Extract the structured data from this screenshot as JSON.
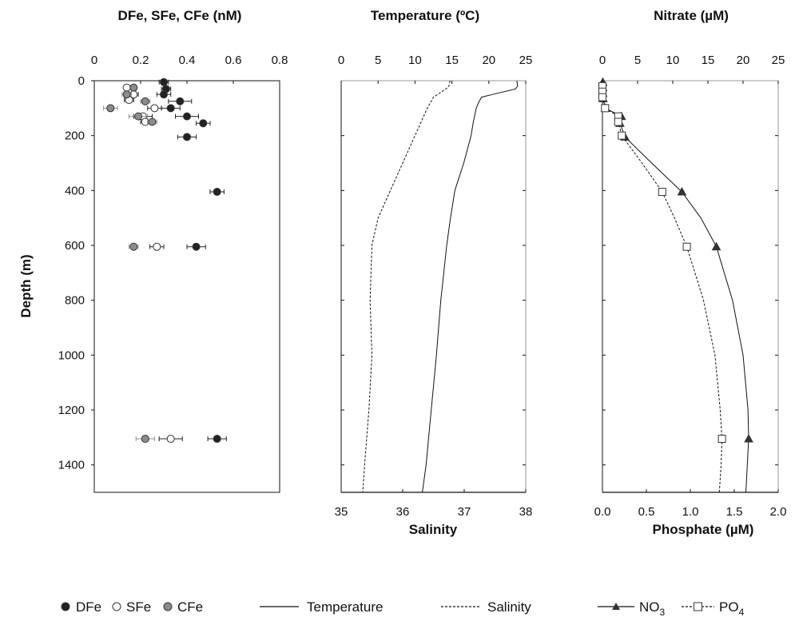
{
  "chart_data": [
    {
      "type": "scatter",
      "title": "DFe, SFe, CFe (nM)",
      "ylabel": "Depth (m)",
      "xlim": [
        0,
        0.8
      ],
      "x_ticks": [
        "0",
        "0.2",
        "0.4",
        "0.6",
        "0.8"
      ],
      "ylim": [
        0,
        1500
      ],
      "y_reversed": true,
      "y_ticks": [
        "0",
        "200",
        "400",
        "600",
        "800",
        "1000",
        "1200",
        "1400"
      ],
      "series": [
        {
          "name": "DFe",
          "marker": "filled-circle",
          "color": "#222222",
          "points": [
            {
              "x": 0.3,
              "y": 5,
              "err": 0.02
            },
            {
              "x": 0.31,
              "y": 30,
              "err": 0.02
            },
            {
              "x": 0.3,
              "y": 50,
              "err": 0.03
            },
            {
              "x": 0.37,
              "y": 75,
              "err": 0.05
            },
            {
              "x": 0.33,
              "y": 100,
              "err": 0.04
            },
            {
              "x": 0.4,
              "y": 130,
              "err": 0.05
            },
            {
              "x": 0.47,
              "y": 155,
              "err": 0.03
            },
            {
              "x": 0.4,
              "y": 205,
              "err": 0.04
            },
            {
              "x": 0.53,
              "y": 405,
              "err": 0.03
            },
            {
              "x": 0.44,
              "y": 605,
              "err": 0.04
            },
            {
              "x": 0.53,
              "y": 1305,
              "err": 0.04
            }
          ]
        },
        {
          "name": "SFe",
          "marker": "open-circle",
          "color": "#222222",
          "points": [
            {
              "x": 0.14,
              "y": 25,
              "err": 0.01
            },
            {
              "x": 0.17,
              "y": 50,
              "err": 0.02
            },
            {
              "x": 0.15,
              "y": 70,
              "err": 0.02
            },
            {
              "x": 0.26,
              "y": 100,
              "err": 0.03
            },
            {
              "x": 0.21,
              "y": 130,
              "err": 0.04
            },
            {
              "x": 0.22,
              "y": 150,
              "err": 0.02
            },
            {
              "x": 0.27,
              "y": 605,
              "err": 0.03
            },
            {
              "x": 0.33,
              "y": 1305,
              "err": 0.05
            }
          ]
        },
        {
          "name": "CFe",
          "marker": "gray-circle",
          "color": "#8c8c8c",
          "points": [
            {
              "x": 0.17,
              "y": 25,
              "err": 0.01
            },
            {
              "x": 0.14,
              "y": 50,
              "err": 0.02
            },
            {
              "x": 0.22,
              "y": 75,
              "err": 0.02
            },
            {
              "x": 0.07,
              "y": 100,
              "err": 0.03
            },
            {
              "x": 0.19,
              "y": 130,
              "err": 0.04
            },
            {
              "x": 0.25,
              "y": 150,
              "err": 0.02
            },
            {
              "x": 0.17,
              "y": 605,
              "err": 0.02
            },
            {
              "x": 0.22,
              "y": 1305,
              "err": 0.04
            }
          ]
        }
      ]
    },
    {
      "type": "line",
      "title": "Temperature (ºC)",
      "xlabel": "Salinity",
      "top_axis": {
        "label": "Temperature (ºC)",
        "lim": [
          0,
          25
        ],
        "ticks": [
          "0",
          "5",
          "10",
          "15",
          "20",
          "25"
        ]
      },
      "bottom_axis": {
        "label": "Salinity",
        "lim": [
          35,
          38
        ],
        "ticks": [
          "35",
          "36",
          "37",
          "38"
        ]
      },
      "ylim": [
        0,
        1500
      ],
      "y_reversed": true,
      "series": [
        {
          "name": "Temperature",
          "axis": "top",
          "style": "solid",
          "points": [
            [
              23.8,
              0
            ],
            [
              23.9,
              20
            ],
            [
              23.6,
              30
            ],
            [
              20.5,
              50
            ],
            [
              19.0,
              60
            ],
            [
              18.6,
              80
            ],
            [
              18.3,
              100
            ],
            [
              17.9,
              150
            ],
            [
              17.6,
              200
            ],
            [
              16.6,
              300
            ],
            [
              15.4,
              400
            ],
            [
              14.8,
              500
            ],
            [
              14.3,
              600
            ],
            [
              13.5,
              800
            ],
            [
              12.9,
              1000
            ],
            [
              12.2,
              1200
            ],
            [
              11.5,
              1400
            ],
            [
              11.0,
              1500
            ]
          ]
        },
        {
          "name": "Salinity",
          "axis": "bottom",
          "style": "dashed",
          "points": [
            [
              36.77,
              0
            ],
            [
              36.75,
              20
            ],
            [
              36.7,
              30
            ],
            [
              36.5,
              60
            ],
            [
              36.45,
              80
            ],
            [
              36.4,
              100
            ],
            [
              36.3,
              150
            ],
            [
              36.2,
              200
            ],
            [
              36.0,
              300
            ],
            [
              35.8,
              400
            ],
            [
              35.6,
              500
            ],
            [
              35.5,
              600
            ],
            [
              35.47,
              800
            ],
            [
              35.5,
              1000
            ],
            [
              35.45,
              1200
            ],
            [
              35.38,
              1400
            ],
            [
              35.35,
              1500
            ]
          ]
        }
      ]
    },
    {
      "type": "line",
      "title": "Nitrate (µM)",
      "xlabel": "Phosphate (µM)",
      "top_axis": {
        "label": "Nitrate (µM)",
        "lim": [
          0,
          25
        ],
        "ticks": [
          "0",
          "5",
          "10",
          "15",
          "20",
          "25"
        ]
      },
      "bottom_axis": {
        "label": "Phosphate (µM)",
        "lim": [
          0,
          2.0
        ],
        "ticks": [
          "0.0",
          "0.5",
          "1.0",
          "1.5",
          "2.0"
        ]
      },
      "ylim": [
        0,
        1500
      ],
      "y_reversed": true,
      "series": [
        {
          "name": "NO3",
          "axis": "top",
          "style": "solid",
          "marker": "triangle",
          "points": [
            [
              0.05,
              5
            ],
            [
              0.05,
              25
            ],
            [
              0.05,
              45
            ],
            [
              0.1,
              65
            ],
            [
              0.4,
              100
            ],
            [
              2.7,
              130
            ],
            [
              2.5,
              155
            ],
            [
              3.2,
              205
            ],
            [
              11.3,
              405
            ],
            [
              16.2,
              605
            ],
            [
              20.8,
              1305
            ]
          ],
          "curve": [
            [
              0,
              0
            ],
            [
              0.1,
              60
            ],
            [
              0.4,
              100
            ],
            [
              2.7,
              130
            ],
            [
              2.5,
              155
            ],
            [
              3.2,
              205
            ],
            [
              7.0,
              300
            ],
            [
              11.3,
              405
            ],
            [
              14.0,
              500
            ],
            [
              16.2,
              605
            ],
            [
              18.5,
              800
            ],
            [
              20.0,
              1000
            ],
            [
              20.7,
              1200
            ],
            [
              20.8,
              1305
            ],
            [
              20.6,
              1400
            ],
            [
              20.4,
              1500
            ]
          ]
        },
        {
          "name": "PO4",
          "axis": "bottom",
          "style": "dashed",
          "marker": "open-square",
          "points": [
            [
              0.0,
              20
            ],
            [
              0.0,
              40
            ],
            [
              0.0,
              60
            ],
            [
              0.03,
              100
            ],
            [
              0.18,
              130
            ],
            [
              0.18,
              150
            ],
            [
              0.22,
              200
            ],
            [
              0.68,
              405
            ],
            [
              0.96,
              605
            ],
            [
              1.36,
              1305
            ]
          ],
          "curve": [
            [
              0,
              0
            ],
            [
              0.0,
              60
            ],
            [
              0.03,
              100
            ],
            [
              0.18,
              130
            ],
            [
              0.18,
              150
            ],
            [
              0.22,
              200
            ],
            [
              0.45,
              300
            ],
            [
              0.68,
              405
            ],
            [
              0.82,
              500
            ],
            [
              0.96,
              605
            ],
            [
              1.15,
              800
            ],
            [
              1.28,
              1000
            ],
            [
              1.34,
              1200
            ],
            [
              1.36,
              1305
            ],
            [
              1.35,
              1400
            ],
            [
              1.33,
              1500
            ]
          ]
        }
      ]
    }
  ],
  "legend": [
    {
      "key": "DFe",
      "text": "DFe",
      "symbol": "filled-circle"
    },
    {
      "key": "SFe",
      "text": "SFe",
      "symbol": "open-circle"
    },
    {
      "key": "CFe",
      "text": "CFe",
      "symbol": "gray-circle"
    },
    {
      "key": "Temperature",
      "text": "Temperature",
      "symbol": "solid-line"
    },
    {
      "key": "Salinity",
      "text": "Salinity",
      "symbol": "dashed-line"
    },
    {
      "key": "NO3",
      "text": "NO",
      "sub": "3",
      "symbol": "solid-line-triangle"
    },
    {
      "key": "PO4",
      "text": "PO",
      "sub": "4",
      "symbol": "dashed-line-square"
    }
  ],
  "colors": {
    "axis": "#111111",
    "border_light": "#999999",
    "gray_marker": "#8c8c8c"
  }
}
